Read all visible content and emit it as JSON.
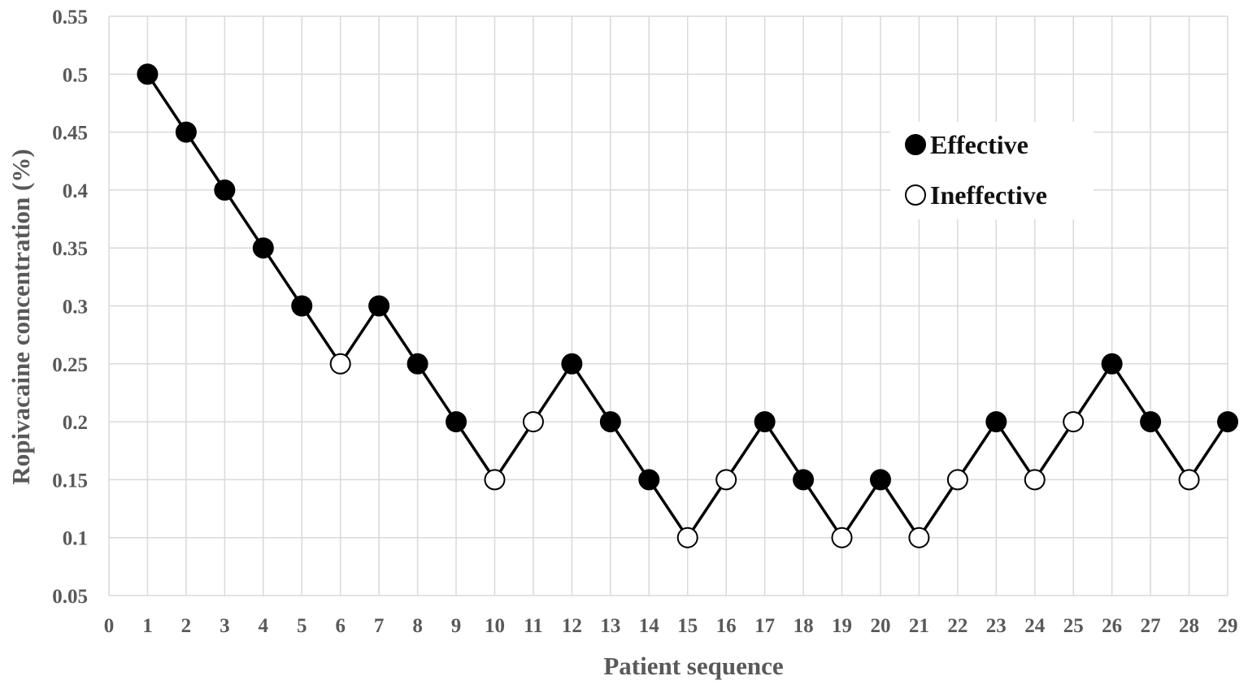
{
  "chart_data": {
    "type": "line",
    "xlabel": "Patient sequence",
    "ylabel": "Ropivacaine concentration (%)",
    "xlim": [
      0,
      29
    ],
    "ylim": [
      0.05,
      0.55
    ],
    "x_ticks": [
      "0",
      "1",
      "2",
      "3",
      "4",
      "5",
      "6",
      "7",
      "8",
      "9",
      "10",
      "11",
      "12",
      "13",
      "14",
      "15",
      "16",
      "17",
      "18",
      "19",
      "20",
      "21",
      "22",
      "23",
      "24",
      "25",
      "26",
      "27",
      "28",
      "29"
    ],
    "y_ticks": [
      "0.55",
      "0.5",
      "0.45",
      "0.4",
      "0.35",
      "0.3",
      "0.25",
      "0.2",
      "0.15",
      "0.1",
      "0.05"
    ],
    "grid": true,
    "legend": {
      "position": "top-right",
      "entries": [
        {
          "label": "Effective",
          "marker": "filled-circle"
        },
        {
          "label": "Ineffective",
          "marker": "open-circle"
        }
      ]
    },
    "points": [
      {
        "x": 1,
        "y": 0.5,
        "outcome": "Effective"
      },
      {
        "x": 2,
        "y": 0.45,
        "outcome": "Effective"
      },
      {
        "x": 3,
        "y": 0.4,
        "outcome": "Effective"
      },
      {
        "x": 4,
        "y": 0.35,
        "outcome": "Effective"
      },
      {
        "x": 5,
        "y": 0.3,
        "outcome": "Effective"
      },
      {
        "x": 6,
        "y": 0.25,
        "outcome": "Ineffective"
      },
      {
        "x": 7,
        "y": 0.3,
        "outcome": "Effective"
      },
      {
        "x": 8,
        "y": 0.25,
        "outcome": "Effective"
      },
      {
        "x": 9,
        "y": 0.2,
        "outcome": "Effective"
      },
      {
        "x": 10,
        "y": 0.15,
        "outcome": "Ineffective"
      },
      {
        "x": 11,
        "y": 0.2,
        "outcome": "Ineffective"
      },
      {
        "x": 12,
        "y": 0.25,
        "outcome": "Effective"
      },
      {
        "x": 13,
        "y": 0.2,
        "outcome": "Effective"
      },
      {
        "x": 14,
        "y": 0.15,
        "outcome": "Effective"
      },
      {
        "x": 15,
        "y": 0.1,
        "outcome": "Ineffective"
      },
      {
        "x": 16,
        "y": 0.15,
        "outcome": "Ineffective"
      },
      {
        "x": 17,
        "y": 0.2,
        "outcome": "Effective"
      },
      {
        "x": 18,
        "y": 0.15,
        "outcome": "Effective"
      },
      {
        "x": 19,
        "y": 0.1,
        "outcome": "Ineffective"
      },
      {
        "x": 20,
        "y": 0.15,
        "outcome": "Effective"
      },
      {
        "x": 21,
        "y": 0.1,
        "outcome": "Ineffective"
      },
      {
        "x": 22,
        "y": 0.15,
        "outcome": "Ineffective"
      },
      {
        "x": 23,
        "y": 0.2,
        "outcome": "Effective"
      },
      {
        "x": 24,
        "y": 0.15,
        "outcome": "Ineffective"
      },
      {
        "x": 25,
        "y": 0.2,
        "outcome": "Ineffective"
      },
      {
        "x": 26,
        "y": 0.25,
        "outcome": "Effective"
      },
      {
        "x": 27,
        "y": 0.2,
        "outcome": "Effective"
      },
      {
        "x": 28,
        "y": 0.15,
        "outcome": "Ineffective"
      },
      {
        "x": 29,
        "y": 0.2,
        "outcome": "Effective"
      }
    ],
    "colors": {
      "line": "#000000",
      "effective_fill": "#000000",
      "ineffective_fill": "#ffffff",
      "grid": "#d9d9d9",
      "axis_text": "#595959"
    }
  }
}
